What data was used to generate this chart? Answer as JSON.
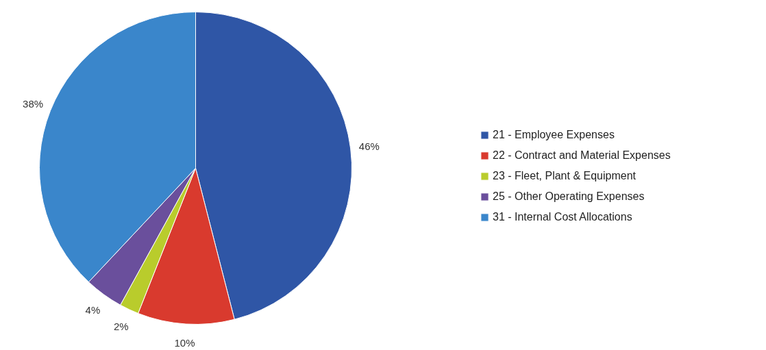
{
  "chart_data": {
    "type": "pie",
    "categories": [
      "21 - Employee Expenses",
      "22 - Contract and Material Expenses",
      "23 - Fleet, Plant & Equipment",
      "25 - Other Operating Expenses",
      "31 - Internal Cost Allocations"
    ],
    "values": [
      46,
      10,
      2,
      4,
      38
    ],
    "colors": [
      "#2f56a6",
      "#d93a2e",
      "#b9cc2c",
      "#6a4f9c",
      "#3a86cb"
    ],
    "value_labels": [
      "46%",
      "10%",
      "2%",
      "4%",
      "38%"
    ],
    "legend": "right"
  }
}
